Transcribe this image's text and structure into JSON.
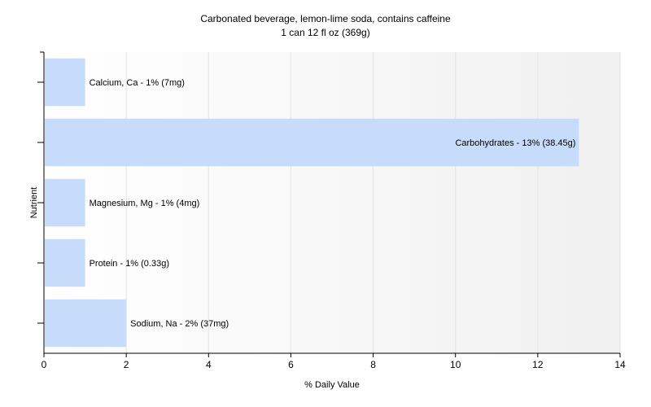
{
  "chart_data": {
    "type": "bar",
    "orientation": "horizontal",
    "title": "Carbonated beverage, lemon-lime soda, contains caffeine",
    "subtitle": "1 can 12 fl oz (369g)",
    "xlabel": "% Daily Value",
    "ylabel": "Nutrient",
    "xlim": [
      0,
      14
    ],
    "xticks": [
      0,
      2,
      4,
      6,
      8,
      10,
      12,
      14
    ],
    "grid": true,
    "legend": "none",
    "bar_color": "#c6dcfa",
    "categories": [
      "Calcium, Ca",
      "Carbohydrates",
      "Magnesium, Mg",
      "Protein",
      "Sodium, Na"
    ],
    "values": [
      1,
      13,
      1,
      1,
      2
    ],
    "labels": [
      "Calcium, Ca - 1% (7mg)",
      "Carbohydrates - 13% (38.45g)",
      "Magnesium, Mg - 1% (4mg)",
      "Protein - 1% (0.33g)",
      "Sodium, Na - 2% (37mg)"
    ]
  }
}
